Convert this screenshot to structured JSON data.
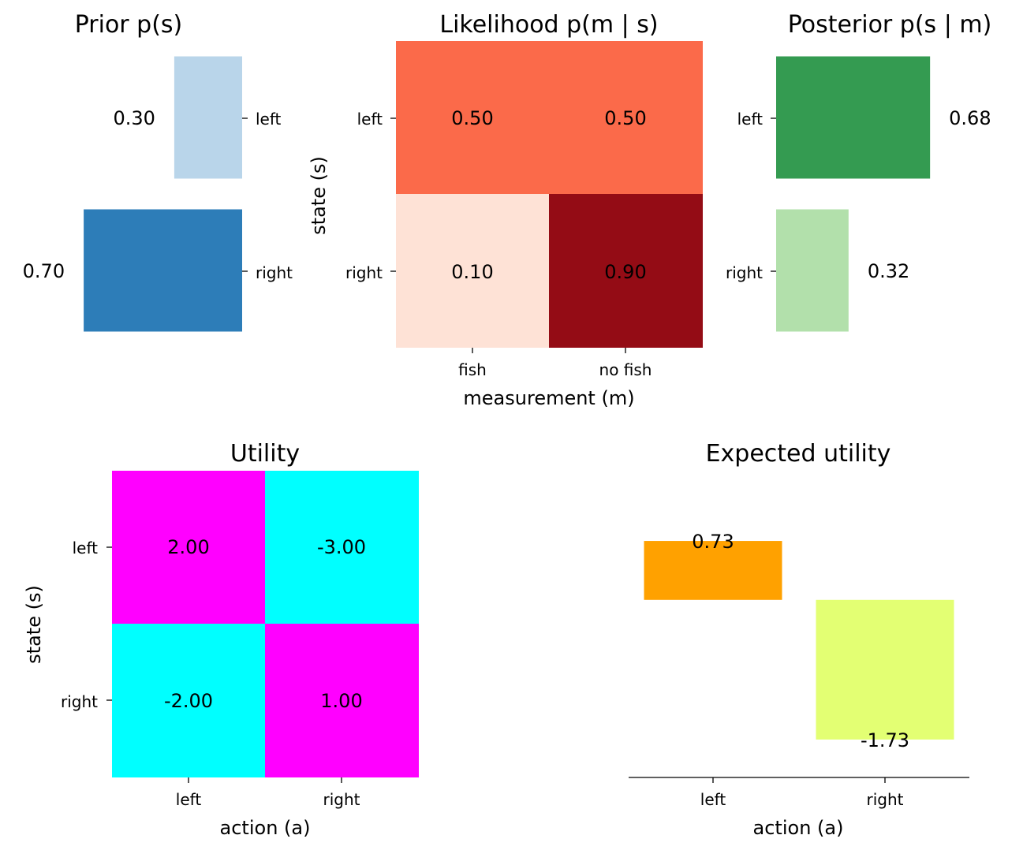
{
  "chart_data": [
    {
      "id": "prior",
      "type": "bar",
      "orientation": "horizontal",
      "title": "Prior p(s)",
      "categories": [
        "left",
        "right"
      ],
      "values": [
        0.3,
        0.7
      ],
      "value_labels": [
        "0.30",
        "0.70"
      ],
      "direction": "leftward",
      "xlim": [
        0,
        1
      ],
      "colors": [
        "#b9d5ea",
        "#2d7db8"
      ],
      "tick_side": "right",
      "grid": false
    },
    {
      "id": "likelihood",
      "type": "heatmap",
      "title": "Likelihood p(m | s)",
      "xlabel": "measurement (m)",
      "ylabel": "state (s)",
      "x_categories": [
        "fish",
        "no fish"
      ],
      "y_categories": [
        "left",
        "right"
      ],
      "values": [
        [
          0.5,
          0.5
        ],
        [
          0.1,
          0.9
        ]
      ],
      "value_labels": [
        [
          "0.50",
          "0.50"
        ],
        [
          "0.10",
          "0.90"
        ]
      ],
      "colors": [
        [
          "#fb6a4a",
          "#fb6a4a"
        ],
        [
          "#fee2d6",
          "#940c15"
        ]
      ]
    },
    {
      "id": "posterior",
      "type": "bar",
      "orientation": "horizontal",
      "title": "Posterior p(s | m)",
      "categories": [
        "left",
        "right"
      ],
      "values": [
        0.68,
        0.32
      ],
      "value_labels": [
        "0.68",
        "0.32"
      ],
      "direction": "rightward",
      "xlim": [
        0,
        1
      ],
      "colors": [
        "#349b51",
        "#b2e0ab"
      ],
      "tick_side": "left",
      "grid": false
    },
    {
      "id": "utility",
      "type": "heatmap",
      "title": "Utility",
      "xlabel": "action (a)",
      "ylabel": "state (s)",
      "x_categories": [
        "left",
        "right"
      ],
      "y_categories": [
        "left",
        "right"
      ],
      "values": [
        [
          2.0,
          -3.0
        ],
        [
          -2.0,
          1.0
        ]
      ],
      "value_labels": [
        [
          "2.00",
          "-3.00"
        ],
        [
          "-2.00",
          "1.00"
        ]
      ],
      "colors": [
        [
          "#ff00ff",
          "#00ffff"
        ],
        [
          "#00ffff",
          "#ff00ff"
        ]
      ]
    },
    {
      "id": "expected_utility",
      "type": "bar",
      "orientation": "vertical",
      "title": "Expected utility",
      "xlabel": "action (a)",
      "categories": [
        "left",
        "right"
      ],
      "values": [
        0.73,
        -1.73
      ],
      "value_labels": [
        "0.73",
        "-1.73"
      ],
      "ylim": [
        -2.2,
        1.6
      ],
      "colors": [
        "#ffa100",
        "#e3ff73"
      ],
      "grid": false
    }
  ]
}
